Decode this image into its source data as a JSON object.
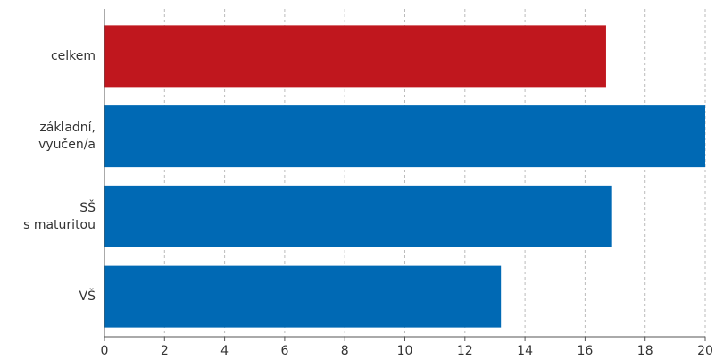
{
  "chart_data": {
    "type": "hbar",
    "categories": [
      [
        "celkem"
      ],
      [
        "základní,",
        "vyučen/a"
      ],
      [
        "SŠ",
        "s maturitou"
      ],
      [
        "VŠ"
      ]
    ],
    "values": [
      16.7,
      20,
      16.9,
      13.2
    ],
    "colors": [
      "#c0171e",
      "#0069b4",
      "#0069b4",
      "#0069b4"
    ],
    "xlim": [
      0,
      20
    ],
    "xticks": [
      0,
      2,
      4,
      6,
      8,
      10,
      12,
      14,
      16,
      18,
      20
    ],
    "grid": true
  }
}
